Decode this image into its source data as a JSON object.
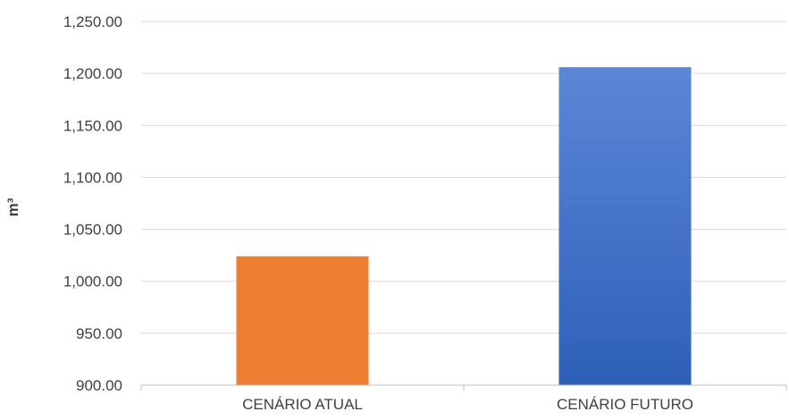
{
  "chart_data": {
    "type": "bar",
    "categories": [
      "CENÁRIO ATUAL",
      "CENÁRIO FUTURO"
    ],
    "values": [
      1024,
      1206
    ],
    "xlabel": "",
    "ylabel": "m³",
    "ylim": [
      900,
      1250
    ],
    "yticks": [
      "900.00",
      "950.00",
      "1,000.00",
      "1,050.00",
      "1,100.00",
      "1,150.00",
      "1,200.00",
      "1,250.00"
    ],
    "grid": true,
    "legend": "none",
    "colors": {
      "bar_fills": [
        "#ED7D31",
        "#4472C4"
      ],
      "bar_gradient_top": [
        "#ED7D31",
        "#5B87D6"
      ],
      "bar_gradient_bottom": [
        "#ED7D31",
        "#2E5FB8"
      ],
      "grid": "#D9D9D9",
      "axis": "#BFBFBF",
      "text": "#404040"
    }
  }
}
